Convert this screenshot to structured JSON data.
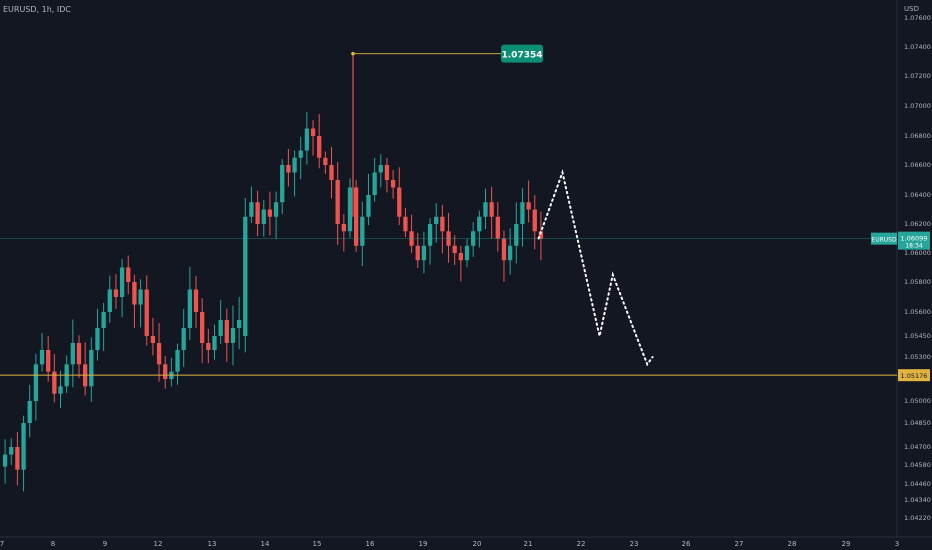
{
  "symbol_line": "EURUSD, 1h, IDC",
  "currency": "USD",
  "colors": {
    "background": "#131722",
    "up": "#26a69a",
    "down": "#ef5350",
    "text": "#b2b5be",
    "support": "#e3b341",
    "label_teal": "#0b8f74"
  },
  "chart_data": {
    "type": "candlestick",
    "symbol": "EURUSD",
    "interval": "1h",
    "source": "IDC",
    "price_ticks": [
      "1.07600",
      "1.07400",
      "1.07200",
      "1.07000",
      "1.06800",
      "1.06600",
      "1.06400",
      "1.06200",
      "1.06000",
      "1.05800",
      "1.05600",
      "1.05450",
      "1.05300",
      "1.05000",
      "1.04850",
      "1.04700",
      "1.04580",
      "1.04460",
      "1.04340",
      "1.04220"
    ],
    "date_ticks": [
      "7",
      "8",
      "9",
      "12",
      "13",
      "14",
      "15",
      "16",
      "19",
      "20",
      "21",
      "22",
      "23",
      "26",
      "27",
      "28",
      "29",
      "3"
    ],
    "high_label": "1.07354",
    "current_price": "1.06099",
    "current_label_symbol": "EURUSD",
    "countdown": "18:34",
    "support_level": "1.05176",
    "candles_approx_close": [
      1.0465,
      1.047,
      1.0455,
      1.0485,
      1.05,
      1.0525,
      1.0535,
      1.052,
      1.0505,
      1.051,
      1.0525,
      1.054,
      1.0525,
      1.051,
      1.0535,
      1.055,
      1.056,
      1.0575,
      1.057,
      1.059,
      1.058,
      1.0565,
      1.0575,
      1.0545,
      1.054,
      1.0525,
      1.0515,
      1.052,
      1.0535,
      1.055,
      1.0575,
      1.056,
      1.054,
      1.0535,
      1.0545,
      1.0555,
      1.054,
      1.055,
      1.0555,
      1.0625,
      1.0635,
      1.062,
      1.063,
      1.0625,
      1.0635,
      1.066,
      1.0655,
      1.0665,
      1.067,
      1.0685,
      1.068,
      1.0665,
      1.066,
      1.065,
      1.062,
      1.0615,
      1.0645,
      1.0605,
      1.0625,
      1.064,
      1.0655,
      1.066,
      1.065,
      1.0645,
      1.0625,
      1.0615,
      1.0605,
      1.0595,
      1.0605,
      1.062,
      1.0625,
      1.0615,
      1.0605,
      1.06,
      1.0595,
      1.0605,
      1.0615,
      1.0625,
      1.0635,
      1.0625,
      1.061,
      1.0595,
      1.0605,
      1.062,
      1.0635,
      1.063,
      1.0615,
      1.061
    ],
    "projection_path": [
      [
        1.061,
        21.2
      ],
      [
        1.0655,
        21.65
      ],
      [
        1.0545,
        22.35
      ],
      [
        1.0585,
        22.6
      ],
      [
        1.0525,
        23.25
      ],
      [
        1.053,
        23.35
      ]
    ]
  }
}
